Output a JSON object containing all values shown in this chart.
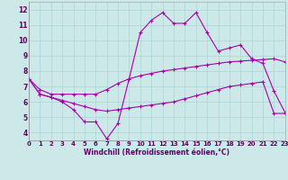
{
  "xlabel": "Windchill (Refroidissement éolien,°C)",
  "xlim": [
    0,
    23
  ],
  "ylim": [
    3.5,
    12.5
  ],
  "yticks": [
    4,
    5,
    6,
    7,
    8,
    9,
    10,
    11,
    12
  ],
  "xticks": [
    0,
    1,
    2,
    3,
    4,
    5,
    6,
    7,
    8,
    9,
    10,
    11,
    12,
    13,
    14,
    15,
    16,
    17,
    18,
    19,
    20,
    21,
    22,
    23
  ],
  "background_color": "#cce8e8",
  "grid_color": "#aad4d4",
  "line_color": "#aa00aa",
  "line1": [
    7.5,
    6.5,
    6.3,
    6.0,
    5.5,
    4.7,
    4.7,
    3.6,
    4.6,
    7.5,
    10.5,
    11.3,
    11.8,
    11.1,
    11.1,
    11.8,
    10.5,
    9.3,
    9.5,
    9.7,
    8.8,
    8.5,
    6.7,
    5.3
  ],
  "line2": [
    7.5,
    6.8,
    6.5,
    6.5,
    6.5,
    6.5,
    6.5,
    6.8,
    7.2,
    7.5,
    7.7,
    7.85,
    8.0,
    8.1,
    8.2,
    8.3,
    8.4,
    8.5,
    8.6,
    8.65,
    8.7,
    8.75,
    8.8,
    8.6
  ],
  "line3": [
    7.5,
    6.5,
    6.3,
    6.1,
    5.9,
    5.7,
    5.5,
    5.4,
    5.5,
    5.6,
    5.7,
    5.8,
    5.9,
    6.0,
    6.2,
    6.4,
    6.6,
    6.8,
    7.0,
    7.1,
    7.2,
    7.3,
    5.25,
    5.25
  ],
  "tick_fontsize": 5,
  "xlabel_fontsize": 5.5,
  "xlabel_color": "#660066"
}
